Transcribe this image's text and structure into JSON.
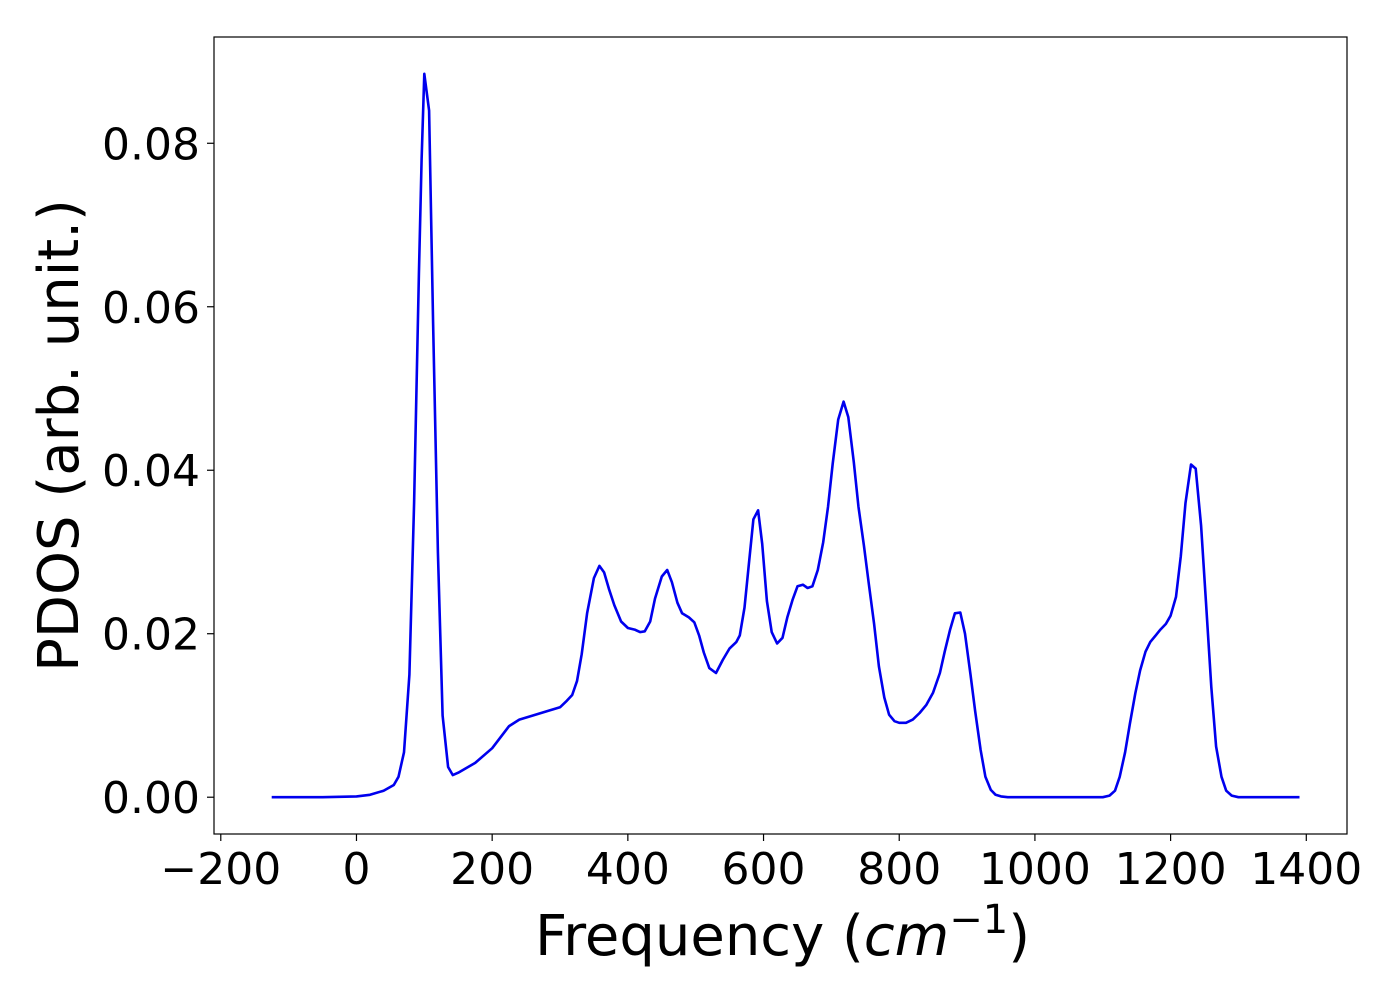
{
  "chart_data": {
    "type": "line",
    "title": "",
    "xlabel": "Frequency",
    "xlabel_unit": "cm",
    "xlabel_unit_exp": "−1",
    "ylabel": "PDOS (arb. unit.)",
    "xlim": [
      -210,
      1460
    ],
    "ylim": [
      -0.0045,
      0.093
    ],
    "grid": false,
    "legend": "none",
    "xticks": [
      -200,
      0,
      200,
      400,
      600,
      800,
      1000,
      1200,
      1400
    ],
    "xtick_labels": [
      "−200",
      "0",
      "200",
      "400",
      "600",
      "800",
      "1000",
      "1200",
      "1400"
    ],
    "yticks": [
      0.0,
      0.02,
      0.04,
      0.06,
      0.08
    ],
    "ytick_labels": [
      "0.00",
      "0.02",
      "0.04",
      "0.06",
      "0.08"
    ],
    "series": [
      {
        "color": "#0000ee",
        "x": [
          -125,
          -100,
          -50,
          0,
          20,
          40,
          55,
          62,
          70,
          78,
          85,
          92,
          96,
          100,
          107,
          113,
          120,
          127,
          135,
          142,
          150,
          175,
          200,
          225,
          240,
          260,
          280,
          300,
          310,
          318,
          325,
          332,
          340,
          350,
          358,
          365,
          372,
          380,
          390,
          400,
          410,
          418,
          425,
          433,
          440,
          450,
          458,
          465,
          473,
          480,
          490,
          498,
          505,
          512,
          520,
          530,
          540,
          550,
          560,
          565,
          572,
          578,
          585,
          592,
          598,
          605,
          612,
          620,
          628,
          635,
          643,
          650,
          658,
          665,
          672,
          680,
          688,
          695,
          702,
          710,
          718,
          725,
          733,
          740,
          748,
          755,
          763,
          770,
          778,
          785,
          793,
          800,
          810,
          820,
          830,
          840,
          850,
          860,
          867,
          875,
          882,
          890,
          897,
          905,
          912,
          920,
          927,
          935,
          942,
          950,
          960,
          980,
          1000,
          1050,
          1100,
          1110,
          1118,
          1125,
          1133,
          1140,
          1148,
          1155,
          1163,
          1170,
          1178,
          1185,
          1193,
          1200,
          1208,
          1215,
          1222,
          1230,
          1237,
          1245,
          1252,
          1260,
          1267,
          1275,
          1282,
          1290,
          1300,
          1350,
          1390
        ],
        "y": [
          0.0,
          0.0,
          0.0,
          0.0001,
          0.0003,
          0.0008,
          0.0015,
          0.0025,
          0.0055,
          0.015,
          0.036,
          0.064,
          0.078,
          0.0885,
          0.084,
          0.058,
          0.03,
          0.01,
          0.0037,
          0.0027,
          0.003,
          0.0042,
          0.006,
          0.0087,
          0.0095,
          0.01,
          0.0105,
          0.011,
          0.0118,
          0.0125,
          0.0142,
          0.0175,
          0.0225,
          0.0268,
          0.0283,
          0.0275,
          0.0255,
          0.0235,
          0.0215,
          0.0207,
          0.0205,
          0.0202,
          0.0203,
          0.0215,
          0.0243,
          0.027,
          0.0278,
          0.0263,
          0.0238,
          0.0225,
          0.022,
          0.0214,
          0.0198,
          0.0177,
          0.0158,
          0.0152,
          0.0168,
          0.0182,
          0.019,
          0.0198,
          0.0232,
          0.0282,
          0.034,
          0.0351,
          0.031,
          0.024,
          0.0202,
          0.0188,
          0.0195,
          0.022,
          0.0242,
          0.0258,
          0.026,
          0.0256,
          0.0258,
          0.0278,
          0.0312,
          0.0355,
          0.0408,
          0.0462,
          0.0484,
          0.0465,
          0.041,
          0.0355,
          0.0308,
          0.0262,
          0.0212,
          0.016,
          0.0122,
          0.0101,
          0.0093,
          0.0091,
          0.0091,
          0.0095,
          0.0103,
          0.0113,
          0.0128,
          0.0152,
          0.0178,
          0.0205,
          0.0225,
          0.0226,
          0.02,
          0.015,
          0.0105,
          0.0058,
          0.0025,
          0.0009,
          0.0003,
          0.0001,
          0.0,
          0.0,
          0.0,
          0.0,
          0.0,
          0.0002,
          0.0008,
          0.0025,
          0.0055,
          0.009,
          0.0127,
          0.0155,
          0.0178,
          0.019,
          0.0198,
          0.0205,
          0.0212,
          0.0222,
          0.0245,
          0.0295,
          0.036,
          0.0407,
          0.0402,
          0.0332,
          0.024,
          0.0135,
          0.0062,
          0.0025,
          0.0008,
          0.0002,
          0.0,
          0.0,
          0.0
        ]
      }
    ]
  }
}
